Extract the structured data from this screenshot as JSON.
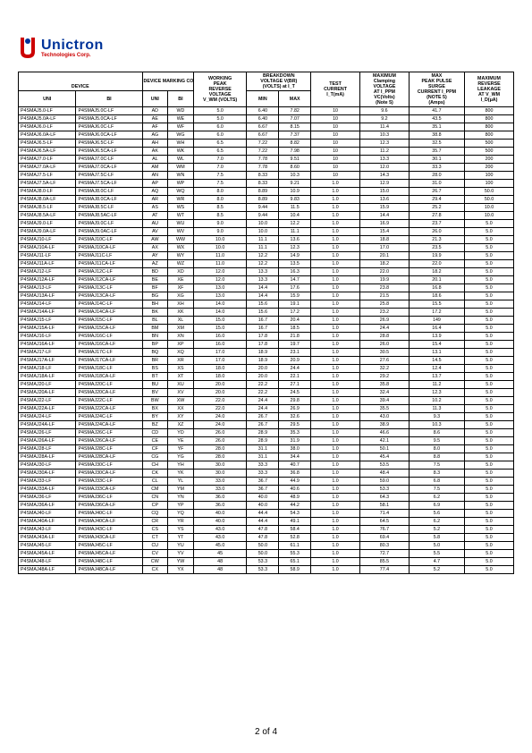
{
  "logo": {
    "name": "Unictron",
    "sub": "Technologies Corp."
  },
  "footer": "2 of 4",
  "headers": {
    "device": "DEVICE",
    "marking": "DEVICE MARKING CODE",
    "wprv_l1": "WORKING",
    "wprv_l2": "PEAK",
    "wprv_l3": "REVERSE",
    "wprv_l4": "VOLTAGE",
    "wprv_l5": "V_WM (VOLTS)",
    "bv_l1": "BREAKDOWN",
    "bv_l2": "VOLTAGE V(BR)",
    "bv_l3": "(VOLTS) at I_T",
    "test_l1": "TEST",
    "test_l2": "CURRENT",
    "test_l3": "I_T(mA)",
    "clamp_l1": "MAXIMUM",
    "clamp_l2": "Clamping",
    "clamp_l3": "VOLTAGE",
    "clamp_l4": "AT I_PPM",
    "clamp_l5": "VC(Volts)",
    "clamp_l6": "(Note 5)",
    "peak_l1": "MAX",
    "peak_l2": "PEAK PULSE",
    "peak_l3": "SURGE",
    "peak_l4": "CURRENT I_PPM",
    "peak_l5": "(NOTE 5)",
    "peak_l6": "(Amps)",
    "leak_l1": "MAXIMUM",
    "leak_l2": "REVERSE",
    "leak_l3": "LEAKAGE",
    "leak_l4": "AT V_WM",
    "leak_l5": "I_D(μA)",
    "uni": "UNI",
    "bi": "BI",
    "min": "MIN",
    "max": "MAX"
  },
  "rows": [
    [
      "P4SMAJ5.0-LF",
      "P4SMAJ5.0C-LF",
      "AD",
      "WD",
      "5.0",
      "6.40",
      "7.82",
      "10",
      "9.6",
      "41.7",
      "800"
    ],
    [
      "P4SMAJ5.0A-LF",
      "P4SMAJ5.0CA-LF",
      "AE",
      "WE",
      "5.0",
      "6.40",
      "7.07",
      "10",
      "9.2",
      "43.5",
      "800"
    ],
    [
      "P4SMAJ6.0-LF",
      "P4SMAJ6.0C-LF",
      "AF",
      "WF",
      "6.0",
      "6.67",
      "8.15",
      "10",
      "11.4",
      "35.1",
      "800"
    ],
    [
      "P4SMAJ6.0A-LF",
      "P4SMAJ6.0CA-LF",
      "AG",
      "WG",
      "6.0",
      "6.67",
      "7.37",
      "10",
      "10.3",
      "38.8",
      "800"
    ],
    [
      "P4SMAJ6.5-LF",
      "P4SMAJ6.5C-LF",
      "AH",
      "WH",
      "6.5",
      "7.22",
      "8.82",
      "10",
      "12.3",
      "32.5",
      "500"
    ],
    [
      "P4SMAJ6.5A-LF",
      "P4SMAJ6.5CA-LF",
      "AK",
      "WK",
      "6.5",
      "7.22",
      "7.98",
      "10",
      "11.2",
      "35.7",
      "500"
    ],
    [
      "P4SMAJ7.0-LF",
      "P4SMAJ7.0C-LF",
      "AL",
      "WL",
      "7.0",
      "7.78",
      "9.51",
      "10",
      "13.3",
      "30.1",
      "200"
    ],
    [
      "P4SMAJ7.0A-LF",
      "P4SMAJ7.0CA-LF",
      "AM",
      "WM",
      "7.0",
      "7.78",
      "8.60",
      "10",
      "12.0",
      "33.3",
      "200"
    ],
    [
      "P4SMAJ7.5-LF",
      "P4SMAJ7.5C-LF",
      "AN",
      "WN",
      "7.5",
      "8.33",
      "10.3",
      "10",
      "14.3",
      "28.0",
      "100"
    ],
    [
      "P4SMAJ7.5A-LF",
      "P4SMAJ7.5CA-LF",
      "AP",
      "WP",
      "7.5",
      "8.33",
      "9.21",
      "1.0",
      "12.9",
      "31.0",
      "100"
    ],
    [
      "P4SMAJ8.0-LF",
      "P4SMAJ8.0C-LF",
      "AQ",
      "WQ",
      "8.0",
      "8.89",
      "10.9",
      "1.0",
      "15.0",
      "26.7",
      "50.0"
    ],
    [
      "P4SMAJ8.0A-LF",
      "P4SMAJ8.0CA-LF",
      "AR",
      "WR",
      "8.0",
      "8.89",
      "9.83",
      "1.0",
      "13.6",
      "29.4",
      "50.0"
    ],
    [
      "P4SMAJ8.5-LF",
      "P4SMAJ8.5C-LF",
      "AS",
      "WS",
      "8.5",
      "9.44",
      "11.5",
      "1.0",
      "15.9",
      "25.2",
      "10.0"
    ],
    [
      "P4SMAJ8.5A-LF",
      "P4SMAJ8.5AC-LF",
      "AT",
      "WT",
      "8.5",
      "9.44",
      "10.4",
      "1.0",
      "14.4",
      "27.8",
      "10.0"
    ],
    [
      "P4SMAJ9.0-LF",
      "P4SMAJ9.0C-LF",
      "AU",
      "WU",
      "9.0",
      "10.0",
      "12.2",
      "1.0",
      "16.9",
      "23.7",
      "5.0"
    ],
    [
      "P4SMAJ9.0A-LF",
      "P4SMAJ9.0AC-LF",
      "AV",
      "WV",
      "9.0",
      "10.0",
      "11.1",
      "1.0",
      "15.4",
      "26.0",
      "5.0"
    ],
    [
      "P4SMAJ10-LF",
      "P4SMAJ10C-LF",
      "AW",
      "WW",
      "10.0",
      "11.1",
      "13.6",
      "1.0",
      "18.8",
      "21.3",
      "5.0"
    ],
    [
      "P4SMAJ10A-LF",
      "P4SMAJ10CA-LF",
      "AX",
      "WX",
      "10.0",
      "11.1",
      "12.3",
      "1.0",
      "17.0",
      "23.5",
      "5.0"
    ],
    [
      "P4SMAJ11-LF",
      "P4SMAJ11C-LF",
      "AY",
      "WY",
      "11.0",
      "12.2",
      "14.9",
      "1.0",
      "20.1",
      "19.9",
      "5.0"
    ],
    [
      "P4SMAJ11A-LF",
      "P4SMAJ11CA-LF",
      "AZ",
      "WZ",
      "11.0",
      "12.2",
      "13.5",
      "1.0",
      "18.2",
      "22.0",
      "5.0"
    ],
    [
      "P4SMAJ12-LF",
      "P4SMAJ12C-LF",
      "BD",
      "XD",
      "12.0",
      "13.3",
      "16.3",
      "1.0",
      "22.0",
      "18.2",
      "5.0"
    ],
    [
      "P4SMAJ12A-LF",
      "P4SMAJ12CA-LF",
      "BE",
      "XE",
      "12.0",
      "13.3",
      "14.7",
      "1.0",
      "19.9",
      "20.1",
      "5.0"
    ],
    [
      "P4SMAJ13-LF",
      "P4SMAJ13C-LF",
      "BF",
      "XF",
      "13.0",
      "14.4",
      "17.6",
      "1.0",
      "23.8",
      "16.8",
      "5.0"
    ],
    [
      "P4SMAJ13A-LF",
      "P4SMAJ13CA-LF",
      "BG",
      "XG",
      "13.0",
      "14.4",
      "15.9",
      "1.0",
      "21.5",
      "18.6",
      "5.0"
    ],
    [
      "P4SMAJ14-LF",
      "P4SMAJ14C-LF",
      "BH",
      "XH",
      "14.0",
      "15.6",
      "19.1",
      "1.0",
      "25.8",
      "15.5",
      "5.0"
    ],
    [
      "P4SMAJ14A-LF",
      "P4SMAJ14CA-LF",
      "BK",
      "XK",
      "14.0",
      "15.6",
      "17.2",
      "1.0",
      "23.2",
      "17.2",
      "5.0"
    ],
    [
      "P4SMAJ15-LF",
      "P4SMAJ15C-LF",
      "BL",
      "XL",
      "15.0",
      "16.7",
      "20.4",
      "1.0",
      "26.9",
      "149",
      "5.0"
    ],
    [
      "P4SMAJ15A-LF",
      "P4SMAJ15CA-LF",
      "BM",
      "XM",
      "15.0",
      "16.7",
      "18.5",
      "1.0",
      "24.4",
      "16.4",
      "5.0"
    ],
    [
      "P4SMAJ16-LF",
      "P4SMAJ16C-LF",
      "BN",
      "XN",
      "16.0",
      "17.8",
      "21.8",
      "1.0",
      "28.8",
      "13.9",
      "5.0"
    ],
    [
      "P4SMAJ16A-LF",
      "P4SMAJ16CA-LF",
      "BP",
      "XP",
      "16.0",
      "17.8",
      "19.7",
      "1.0",
      "26.0",
      "15.4",
      "5.0"
    ],
    [
      "P4SMAJ17-LF",
      "P4SMAJ17C-LF",
      "BQ",
      "XQ",
      "17.0",
      "18.9",
      "23.1",
      "1.0",
      "30.5",
      "13.1",
      "5.0"
    ],
    [
      "P4SMAJ17A-LF",
      "P4SMAJ17CA-LF",
      "BR",
      "XR",
      "17.0",
      "18.9",
      "20.9",
      "1.0",
      "27.6",
      "14.5",
      "5.0"
    ],
    [
      "P4SMAJ18-LF",
      "P4SMAJ18C-LF",
      "BS",
      "XS",
      "18.0",
      "20.0",
      "24.4",
      "1.0",
      "32.2",
      "12.4",
      "5.0"
    ],
    [
      "P4SMAJ18A-LF",
      "P4SMAJ18CA-LF",
      "BT",
      "XT",
      "18.0",
      "20.0",
      "22.1",
      "1.0",
      "29.2",
      "13.7",
      "5.0"
    ],
    [
      "P4SMAJ20-LF",
      "P4SMAJ20C-LF",
      "BU",
      "XU",
      "20.0",
      "22.2",
      "27.1",
      "1.0",
      "35.8",
      "11.2",
      "5.0"
    ],
    [
      "P4SMAJ20A-LF",
      "P4SMAJ20CA-LF",
      "BV",
      "XV",
      "20.0",
      "22.2",
      "24.5",
      "1.0",
      "32.4",
      "12.3",
      "5.0"
    ],
    [
      "P4SMAJ22-LF",
      "P4SMAJ22C-LF",
      "BW",
      "XW",
      "22.0",
      "24.4",
      "29.8",
      "1.0",
      "39.4",
      "10.2",
      "5.0"
    ],
    [
      "P4SMAJ22A-LF",
      "P4SMAJ22CA-LF",
      "BX",
      "XX",
      "22.0",
      "24.4",
      "26.9",
      "1.0",
      "35.5",
      "11.3",
      "5.0"
    ],
    [
      "P4SMAJ24-LF",
      "P4SMAJ24C-LF",
      "BY",
      "XY",
      "24.0",
      "26.7",
      "32.6",
      "1.0",
      "43.0",
      "9.3",
      "5.0"
    ],
    [
      "P4SMAJ24A-LF",
      "P4SMAJ24CA-LF",
      "BZ",
      "XZ",
      "24.0",
      "26.7",
      "29.5",
      "1.0",
      "38.9",
      "10.3",
      "5.0"
    ],
    [
      "P4SMAJ26-LF",
      "P4SMAJ26C-LF",
      "CD",
      "YD",
      "26.0",
      "28.9",
      "35.3",
      "1.0",
      "46.6",
      "8.6",
      "5.0"
    ],
    [
      "P4SMAJ26A-LF",
      "P4SMAJ26CA-LF",
      "CE",
      "YE",
      "26.0",
      "28.9",
      "31.9",
      "1.0",
      "42.1",
      "9.5",
      "5.0"
    ],
    [
      "P4SMAJ28-LF",
      "P4SMAJ28C-LF",
      "CF",
      "YF",
      "28.0",
      "31.1",
      "38.0",
      "1.0",
      "50.1",
      "8.0",
      "5.0"
    ],
    [
      "P4SMAJ28A-LF",
      "P4SMAJ28CA-LF",
      "CG",
      "YG",
      "28.0",
      "31.1",
      "34.4",
      "1.0",
      "45.4",
      "8.8",
      "5.0"
    ],
    [
      "P4SMAJ30-LF",
      "P4SMAJ30C-LF",
      "CH",
      "YH",
      "30.0",
      "33.3",
      "40.7",
      "1.0",
      "53.5",
      "7.5",
      "5.0"
    ],
    [
      "P4SMAJ30A-LF",
      "P4SMAJ30CA-LF",
      "CK",
      "YK",
      "30.0",
      "33.3",
      "36.8",
      "1.0",
      "48.4",
      "8.3",
      "5.0"
    ],
    [
      "P4SMAJ33-LF",
      "P4SMAJ33C-LF",
      "CL",
      "YL",
      "33.0",
      "36.7",
      "44.9",
      "1.0",
      "59.0",
      "6.8",
      "5.0"
    ],
    [
      "P4SMAJ33A-LF",
      "P4SMAJ33CA-LF",
      "CM",
      "YM",
      "33.0",
      "36.7",
      "40.6",
      "1.0",
      "53.3",
      "7.5",
      "5.0"
    ],
    [
      "P4SMAJ36-LF",
      "P4SMAJ36C-LF",
      "CN",
      "YN",
      "36.0",
      "40.0",
      "48.9",
      "1.0",
      "64.3",
      "6.2",
      "5.0"
    ],
    [
      "P4SMAJ36A-LF",
      "P4SMAJ36CA-LF",
      "CP",
      "YP",
      "36.0",
      "40.0",
      "44.2",
      "1.0",
      "58.1",
      "6.9",
      "5.0"
    ],
    [
      "P4SMAJ40-LF",
      "P4SMAJ40C-LF",
      "CQ",
      "YQ",
      "40.0",
      "44.4",
      "54.3",
      "1.0",
      "71.4",
      "5.6",
      "5.0"
    ],
    [
      "P4SMAJ40A-LF",
      "P4SMAJ40CA-LF",
      "CR",
      "YR",
      "40.0",
      "44.4",
      "49.1",
      "1.0",
      "64.5",
      "6.2",
      "5.0"
    ],
    [
      "P4SMAJ43-LF",
      "P4SMAJ43C-LF",
      "CS",
      "YS",
      "43.0",
      "47.8",
      "58.4",
      "1.0",
      "76.7",
      "5.2",
      "5.0"
    ],
    [
      "P4SMAJ43A-LF",
      "P4SMAJ43CA-LF",
      "CT",
      "YT",
      "43.0",
      "47.8",
      "52.8",
      "1.0",
      "69.4",
      "5.8",
      "5.0"
    ],
    [
      "P4SMAJ45-LF",
      "P4SMAJ45C-LF",
      "CU",
      "YU",
      "45.0",
      "50.0",
      "61.1",
      "1.0",
      "80.3",
      "5.0",
      "5.0"
    ],
    [
      "P4SMAJ45A-LF",
      "P4SMAJ45CA-LF",
      "CV",
      "YV",
      "45",
      "50.0",
      "55.3",
      "1.0",
      "72.7",
      "5.5",
      "5.0"
    ],
    [
      "P4SMAJ48-LF",
      "P4SMAJ48C-LF",
      "CW",
      "YW",
      "48",
      "53.3",
      "65.1",
      "1.0",
      "85.5",
      "4.7",
      "5.0"
    ],
    [
      "P4SMAJ48A-LF",
      "P4SMAJ48CA-LF",
      "CX",
      "YX",
      "48",
      "53.3",
      "58.9",
      "1.0",
      "77.4",
      "5.2",
      "5.0"
    ]
  ]
}
